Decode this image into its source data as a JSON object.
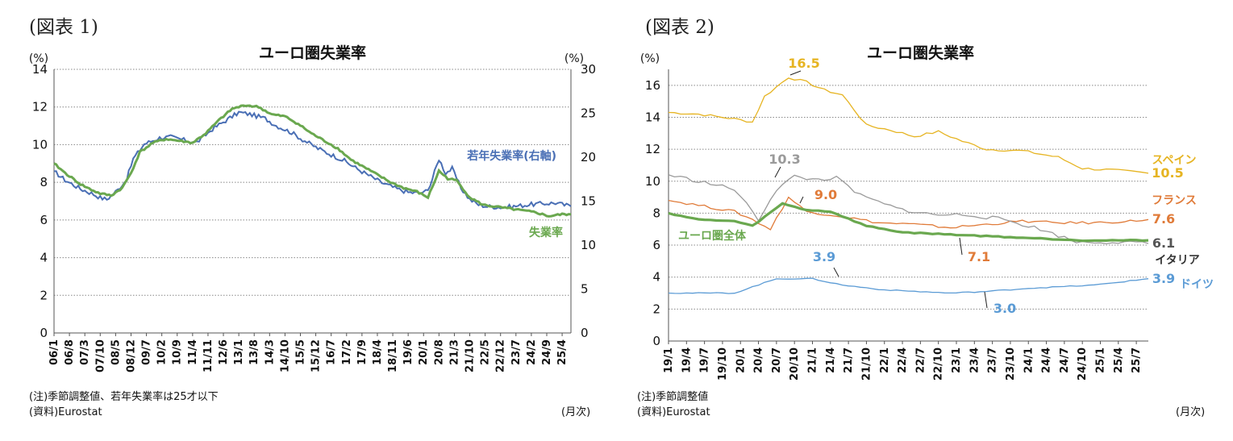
{
  "figure1": {
    "label": "(図表 1)",
    "note": "(注)季節調整値、若年失業率は25才以下",
    "source": "(資料)Eurostat",
    "xunit": "(月次)"
  },
  "figure2": {
    "label": "(図表 2)",
    "note": "(注)季節調整値",
    "source": "(資料)Eurostat",
    "xunit": "(月次)"
  },
  "chart_data": [
    {
      "type": "line",
      "title": "ユーロ圏失業率",
      "ylabel_left": "(%)",
      "ylabel_right": "(%)",
      "xlabel": "(月次)",
      "ylim_left": [
        0,
        14
      ],
      "ylim_right": [
        0,
        30
      ],
      "yticks_left": [
        0,
        2,
        4,
        6,
        8,
        10,
        12,
        14
      ],
      "yticks_right": [
        0,
        5,
        10,
        15,
        20,
        25,
        30
      ],
      "grid": true,
      "x_start": "2006-01",
      "x_end": "2025-08",
      "categories": [
        "06/1",
        "06/8",
        "07/3",
        "07/10",
        "08/5",
        "08/12",
        "09/7",
        "10/2",
        "10/9",
        "11/4",
        "11/11",
        "12/6",
        "13/1",
        "13/8",
        "14/3",
        "14/10",
        "15/5",
        "15/12",
        "16/7",
        "17/2",
        "17/9",
        "18/4",
        "18/11",
        "19/6",
        "20/1",
        "20/8",
        "21/3",
        "21/10",
        "22/5",
        "22/12",
        "23/7",
        "24/2",
        "24/9",
        "25/4"
      ],
      "series": [
        {
          "name": "若年失業率(右軸)",
          "axis": "right",
          "color": "#4a6fb5",
          "points": [
            [
              "2006-01",
              18.4
            ],
            [
              "2006-06",
              17.4
            ],
            [
              "2007-01",
              16.4
            ],
            [
              "2007-06",
              15.9
            ],
            [
              "2007-10",
              15.4
            ],
            [
              "2008-01",
              15.2
            ],
            [
              "2008-06",
              16.3
            ],
            [
              "2008-10",
              17.5
            ],
            [
              "2009-01",
              19.8
            ],
            [
              "2009-06",
              21.5
            ],
            [
              "2010-01",
              22.2
            ],
            [
              "2010-06",
              22.3
            ],
            [
              "2011-01",
              21.9
            ],
            [
              "2011-06",
              21.7
            ],
            [
              "2012-01",
              23.2
            ],
            [
              "2012-06",
              24.0
            ],
            [
              "2013-01",
              25.1
            ],
            [
              "2013-06",
              24.9
            ],
            [
              "2014-01",
              24.4
            ],
            [
              "2014-06",
              23.6
            ],
            [
              "2015-01",
              22.8
            ],
            [
              "2015-06",
              22.0
            ],
            [
              "2016-01",
              21.0
            ],
            [
              "2016-06",
              20.4
            ],
            [
              "2017-01",
              19.6
            ],
            [
              "2017-06",
              18.8
            ],
            [
              "2018-01",
              17.8
            ],
            [
              "2018-06",
              17.1
            ],
            [
              "2019-01",
              16.4
            ],
            [
              "2019-06",
              16.0
            ],
            [
              "2020-01",
              15.9
            ],
            [
              "2020-04",
              16.8
            ],
            [
              "2020-08",
              19.8
            ],
            [
              "2020-11",
              18.2
            ],
            [
              "2021-02",
              18.7
            ],
            [
              "2021-06",
              16.5
            ],
            [
              "2021-10",
              15.2
            ],
            [
              "2022-02",
              14.6
            ],
            [
              "2022-06",
              14.4
            ],
            [
              "2023-01",
              14.3
            ],
            [
              "2023-06",
              14.4
            ],
            [
              "2024-01",
              14.6
            ],
            [
              "2024-06",
              14.7
            ],
            [
              "2025-01",
              14.8
            ],
            [
              "2025-08",
              14.4
            ]
          ]
        },
        {
          "name": "失業率",
          "axis": "left",
          "color": "#6aa84f",
          "points": [
            [
              "2006-01",
              9.0
            ],
            [
              "2006-06",
              8.5
            ],
            [
              "2007-01",
              7.9
            ],
            [
              "2007-06",
              7.6
            ],
            [
              "2007-10",
              7.4
            ],
            [
              "2008-03",
              7.3
            ],
            [
              "2008-08",
              7.7
            ],
            [
              "2008-12",
              8.5
            ],
            [
              "2009-04",
              9.6
            ],
            [
              "2009-10",
              10.1
            ],
            [
              "2010-04",
              10.3
            ],
            [
              "2010-10",
              10.2
            ],
            [
              "2011-04",
              10.1
            ],
            [
              "2011-10",
              10.6
            ],
            [
              "2012-04",
              11.3
            ],
            [
              "2012-10",
              11.9
            ],
            [
              "2013-04",
              12.1
            ],
            [
              "2013-10",
              12.0
            ],
            [
              "2014-04",
              11.6
            ],
            [
              "2014-10",
              11.5
            ],
            [
              "2015-04",
              11.1
            ],
            [
              "2015-10",
              10.6
            ],
            [
              "2016-04",
              10.2
            ],
            [
              "2016-10",
              9.8
            ],
            [
              "2017-04",
              9.2
            ],
            [
              "2017-10",
              8.8
            ],
            [
              "2018-04",
              8.4
            ],
            [
              "2018-10",
              8.0
            ],
            [
              "2019-04",
              7.7
            ],
            [
              "2019-10",
              7.5
            ],
            [
              "2020-03",
              7.2
            ],
            [
              "2020-08",
              8.6
            ],
            [
              "2020-12",
              8.2
            ],
            [
              "2021-04",
              8.1
            ],
            [
              "2021-10",
              7.2
            ],
            [
              "2022-04",
              6.8
            ],
            [
              "2022-10",
              6.7
            ],
            [
              "2023-04",
              6.6
            ],
            [
              "2023-10",
              6.5
            ],
            [
              "2024-04",
              6.4
            ],
            [
              "2024-10",
              6.2
            ],
            [
              "2025-04",
              6.3
            ],
            [
              "2025-08",
              6.3
            ]
          ]
        }
      ],
      "annotations": [
        {
          "text": "若年失業率(右軸)",
          "series": "若年失業率(右軸)"
        },
        {
          "text": "失業率",
          "series": "失業率"
        }
      ]
    },
    {
      "type": "line",
      "title": "ユーロ圏失業率",
      "ylabel": "(%)",
      "xlabel": "(月次)",
      "ylim": [
        0,
        17
      ],
      "yticks": [
        0,
        2,
        4,
        6,
        8,
        10,
        12,
        14,
        16
      ],
      "grid": true,
      "x_start": "2019-01",
      "x_end": "2025-09",
      "categories": [
        "19/1",
        "19/4",
        "19/7",
        "19/10",
        "20/1",
        "20/4",
        "20/7",
        "20/10",
        "21/1",
        "21/4",
        "21/7",
        "21/10",
        "22/1",
        "22/4",
        "22/7",
        "22/10",
        "23/1",
        "23/4",
        "23/7",
        "23/10",
        "24/1",
        "24/4",
        "24/7",
        "24/10",
        "25/1",
        "25/4",
        "25/7"
      ],
      "series": [
        {
          "name": "スペイン",
          "color": "#e6b422",
          "end_label": "10.5",
          "points": [
            [
              "2019-01",
              14.3
            ],
            [
              "2019-06",
              14.2
            ],
            [
              "2019-12",
              13.9
            ],
            [
              "2020-03",
              13.7
            ],
            [
              "2020-05",
              15.3
            ],
            [
              "2020-09",
              16.5
            ],
            [
              "2020-12",
              16.2
            ],
            [
              "2021-03",
              15.7
            ],
            [
              "2021-06",
              15.4
            ],
            [
              "2021-10",
              13.5
            ],
            [
              "2022-02",
              13.2
            ],
            [
              "2022-06",
              12.8
            ],
            [
              "2022-10",
              13.1
            ],
            [
              "2023-02",
              12.5
            ],
            [
              "2023-06",
              12.0
            ],
            [
              "2023-12",
              11.9
            ],
            [
              "2024-06",
              11.5
            ],
            [
              "2024-10",
              10.8
            ],
            [
              "2025-03",
              10.7
            ],
            [
              "2025-09",
              10.5
            ]
          ]
        },
        {
          "name": "フランス",
          "color": "#e07b39",
          "end_label": "7.6",
          "points": [
            [
              "2019-01",
              8.8
            ],
            [
              "2019-06",
              8.5
            ],
            [
              "2019-12",
              8.1
            ],
            [
              "2020-03",
              7.6
            ],
            [
              "2020-06",
              7.0
            ],
            [
              "2020-09",
              9.0
            ],
            [
              "2020-12",
              8.1
            ],
            [
              "2021-06",
              7.8
            ],
            [
              "2021-12",
              7.4
            ],
            [
              "2022-06",
              7.3
            ],
            [
              "2022-12",
              7.1
            ],
            [
              "2023-06",
              7.3
            ],
            [
              "2023-12",
              7.5
            ],
            [
              "2024-06",
              7.4
            ],
            [
              "2024-12",
              7.4
            ],
            [
              "2025-06",
              7.5
            ],
            [
              "2025-09",
              7.6
            ]
          ]
        },
        {
          "name": "イタリア",
          "color": "#9a9a9a",
          "end_label": "6.1",
          "points": [
            [
              "2019-01",
              10.4
            ],
            [
              "2019-06",
              10.0
            ],
            [
              "2019-12",
              9.5
            ],
            [
              "2020-04",
              7.6
            ],
            [
              "2020-07",
              9.5
            ],
            [
              "2020-10",
              10.3
            ],
            [
              "2021-01",
              10.1
            ],
            [
              "2021-05",
              10.2
            ],
            [
              "2021-09",
              9.1
            ],
            [
              "2022-03",
              8.3
            ],
            [
              "2022-09",
              7.9
            ],
            [
              "2023-03",
              7.9
            ],
            [
              "2023-09",
              7.6
            ],
            [
              "2024-03",
              7.0
            ],
            [
              "2024-09",
              6.2
            ],
            [
              "2025-03",
              6.2
            ],
            [
              "2025-09",
              6.1
            ]
          ]
        },
        {
          "name": "ドイツ",
          "color": "#5b9bd5",
          "end_label": "3.9",
          "points": [
            [
              "2019-01",
              3.0
            ],
            [
              "2019-12",
              3.0
            ],
            [
              "2020-07",
              3.9
            ],
            [
              "2021-01",
              3.9
            ],
            [
              "2021-06",
              3.5
            ],
            [
              "2022-01",
              3.2
            ],
            [
              "2022-12",
              3.0
            ],
            [
              "2023-06",
              3.1
            ],
            [
              "2024-01",
              3.3
            ],
            [
              "2024-12",
              3.5
            ],
            [
              "2025-09",
              3.9
            ]
          ]
        },
        {
          "name": "ユーロ圏全体",
          "color": "#6aa84f",
          "points": [
            [
              "2019-01",
              8.0
            ],
            [
              "2019-06",
              7.6
            ],
            [
              "2019-12",
              7.5
            ],
            [
              "2020-03",
              7.2
            ],
            [
              "2020-08",
              8.6
            ],
            [
              "2020-12",
              8.2
            ],
            [
              "2021-04",
              8.1
            ],
            [
              "2021-10",
              7.2
            ],
            [
              "2022-04",
              6.8
            ],
            [
              "2022-10",
              6.7
            ],
            [
              "2023-04",
              6.6
            ],
            [
              "2023-10",
              6.5
            ],
            [
              "2024-04",
              6.4
            ],
            [
              "2024-10",
              6.3
            ],
            [
              "2025-04",
              6.3
            ],
            [
              "2025-09",
              6.3
            ]
          ]
        }
      ],
      "annotations": [
        {
          "text": "16.5",
          "color": "#e6b422"
        },
        {
          "text": "10.3",
          "color": "#9a9a9a"
        },
        {
          "text": "9.0",
          "color": "#e07b39"
        },
        {
          "text": "3.9",
          "color": "#5b9bd5"
        },
        {
          "text": "7.1",
          "color": "#e07b39"
        },
        {
          "text": "3.0",
          "color": "#5b9bd5"
        },
        {
          "text": "ユーロ圏全体",
          "color": "#6aa84f"
        },
        {
          "text": "スペイン",
          "color": "#e6b422"
        },
        {
          "text": "フランス",
          "color": "#e07b39"
        },
        {
          "text": "イタリア",
          "color": "#333333"
        },
        {
          "text": "ドイツ",
          "color": "#5b9bd5"
        }
      ]
    }
  ]
}
